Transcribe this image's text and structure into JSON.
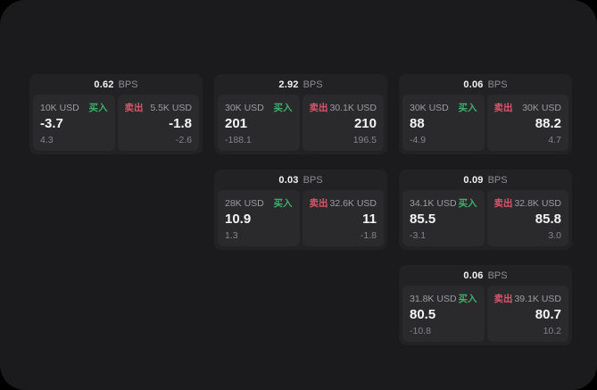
{
  "labels": {
    "buy": "买入",
    "sell": "卖出",
    "bps_unit": "BPS"
  },
  "colors": {
    "background": "#000000",
    "panel": "#1b1b1d",
    "card": "#222225",
    "tile": "#2a2a2d",
    "buy_green": "#3fae6a",
    "sell_red": "#d8566b",
    "text_primary": "#f4f4f5",
    "text_secondary": "#9d9da1",
    "text_muted": "#85858a"
  },
  "cards": [
    {
      "bps": "0.62",
      "buy": {
        "size": "10K USD",
        "value": "-3.7",
        "sub": "4.3"
      },
      "sell": {
        "size": "5.5K USD",
        "value": "-1.8",
        "sub": "-2.6"
      }
    },
    {
      "bps": "2.92",
      "buy": {
        "size": "30K USD",
        "value": "201",
        "sub": "-188.1"
      },
      "sell": {
        "size": "30.1K USD",
        "value": "210",
        "sub": "196.5"
      }
    },
    {
      "bps": "0.06",
      "buy": {
        "size": "30K USD",
        "value": "88",
        "sub": "-4.9"
      },
      "sell": {
        "size": "30K USD",
        "value": "88.2",
        "sub": "4.7"
      }
    },
    {
      "bps": "0.03",
      "buy": {
        "size": "28K USD",
        "value": "10.9",
        "sub": "1.3"
      },
      "sell": {
        "size": "32.6K USD",
        "value": "11",
        "sub": "-1.8"
      }
    },
    {
      "bps": "0.09",
      "buy": {
        "size": "34.1K USD",
        "value": "85.5",
        "sub": "-3.1"
      },
      "sell": {
        "size": "32.8K USD",
        "value": "85.8",
        "sub": "3.0"
      }
    },
    {
      "bps": "0.06",
      "buy": {
        "size": "31.8K USD",
        "value": "80.5",
        "sub": "-10.8"
      },
      "sell": {
        "size": "39.1K USD",
        "value": "80.7",
        "sub": "10.2"
      }
    }
  ]
}
